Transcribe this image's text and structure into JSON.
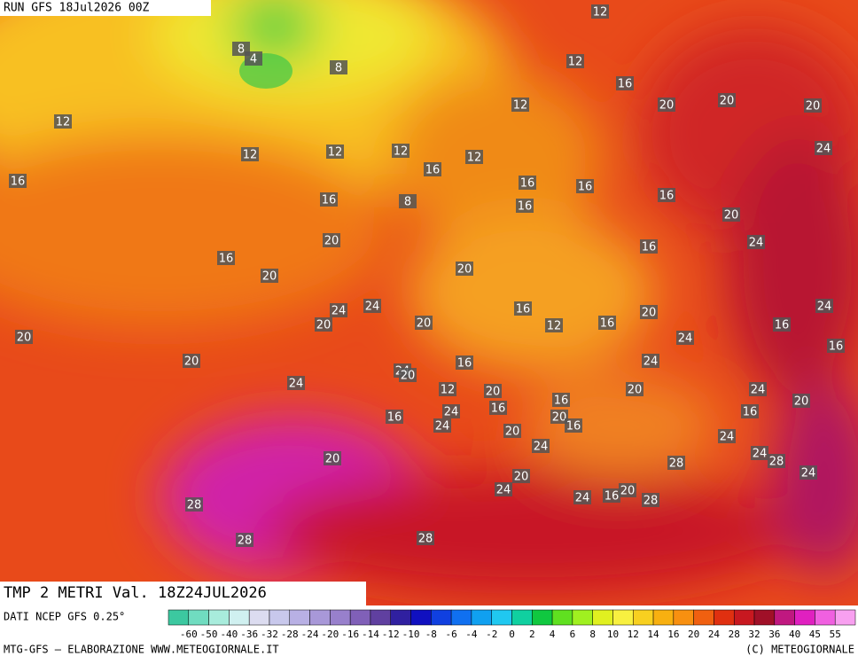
{
  "header": {
    "run": "RUN GFS 18Jul2026 00Z"
  },
  "map_labels": [
    "12",
    "8",
    "4",
    "8",
    "12",
    "16",
    "12",
    "12",
    "20",
    "20",
    "20",
    "12",
    "12",
    "12",
    "12",
    "24",
    "16",
    "16",
    "16",
    "16",
    "16",
    "16",
    "8",
    "16",
    "20",
    "20",
    "24",
    "16",
    "16",
    "20",
    "20",
    "24",
    "24",
    "16",
    "20",
    "24",
    "20",
    "20",
    "12",
    "16",
    "16",
    "20",
    "24",
    "16",
    "20",
    "16",
    "24",
    "24",
    "20",
    "24",
    "12",
    "20",
    "20",
    "24",
    "20",
    "16",
    "16",
    "24",
    "16",
    "16",
    "20",
    "16",
    "24",
    "20",
    "24",
    "24",
    "24",
    "28",
    "20",
    "28",
    "24",
    "20",
    "24",
    "20",
    "16",
    "24",
    "28",
    "28",
    "28",
    "28"
  ],
  "footer": {
    "field": "TMP 2 METRI Val. 18Z24JUL2026",
    "source": "DATI NCEP GFS 0.25°",
    "credit": "MTG-GFS — ELABORAZIONE WWW.METEOGIORNALE.IT",
    "copyright": "(C) METEOGIORNALE"
  },
  "legend": {
    "labels": [
      "-60",
      "-50",
      "-40",
      "-36",
      "-32",
      "-28",
      "-24",
      "-20",
      "-16",
      "-14",
      "-12",
      "-10",
      "-8",
      "-6",
      "-4",
      "-2",
      "0",
      "2",
      "4",
      "6",
      "8",
      "10",
      "12",
      "14",
      "16",
      "20",
      "24",
      "28",
      "32",
      "36",
      "40",
      "45",
      "55"
    ],
    "colors": [
      "#3cc8a0",
      "#70dcc0",
      "#a8ecdc",
      "#d0f0f0",
      "#dcdcf0",
      "#c8c8ec",
      "#b8b0e4",
      "#a898d8",
      "#9880cc",
      "#8060b8",
      "#6040a0",
      "#3020a0",
      "#1010c0",
      "#1040e0",
      "#1070f0",
      "#10a0f0",
      "#20c8f0",
      "#10d0a0",
      "#10c840",
      "#60e020",
      "#a0f020",
      "#e0f020",
      "#f8f040",
      "#f8d020",
      "#f8b010",
      "#f89010",
      "#f06010",
      "#e03010",
      "#c81820",
      "#a01028",
      "#c01880",
      "#e020c0",
      "#f060e0",
      "#f8a0f0"
    ]
  }
}
